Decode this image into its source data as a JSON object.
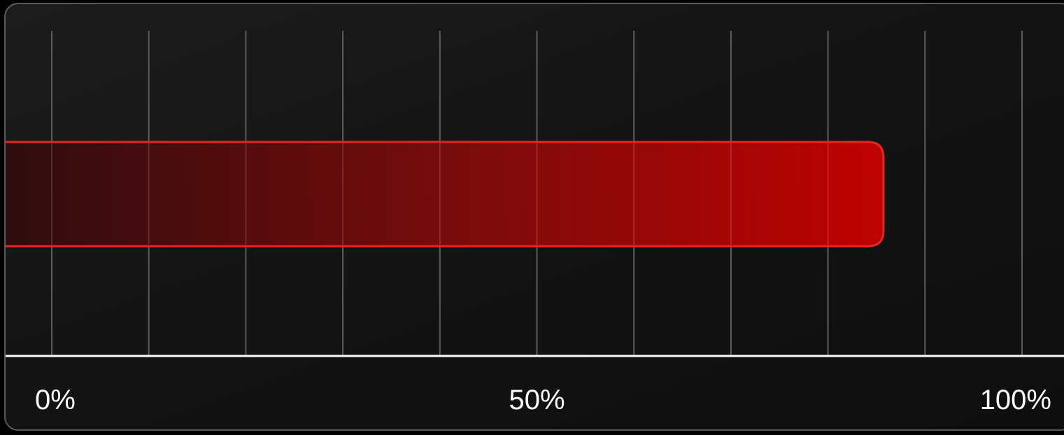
{
  "chart_data": {
    "type": "bar",
    "orientation": "horizontal",
    "categories": [
      ""
    ],
    "values": [
      85
    ],
    "xlim": [
      0,
      100
    ],
    "x_ticks": [
      0,
      50,
      100
    ],
    "x_tick_labels": [
      "0%",
      "50%",
      "100%"
    ],
    "x_gridlines": [
      0,
      10,
      20,
      30,
      40,
      50,
      60,
      70,
      80,
      90,
      100
    ],
    "grid": true,
    "legend": "none",
    "title": "",
    "xlabel": "",
    "ylabel": ""
  },
  "colors": {
    "background": "#000000",
    "panel_border": "#5a5a5a",
    "gridline": "#5c5c5c",
    "axis_line": "#ffffff",
    "bar_start": "#2a0c0e",
    "bar_end": "#cc0000",
    "bar_outline": "#e32622",
    "tick_text": "#ffffff"
  }
}
